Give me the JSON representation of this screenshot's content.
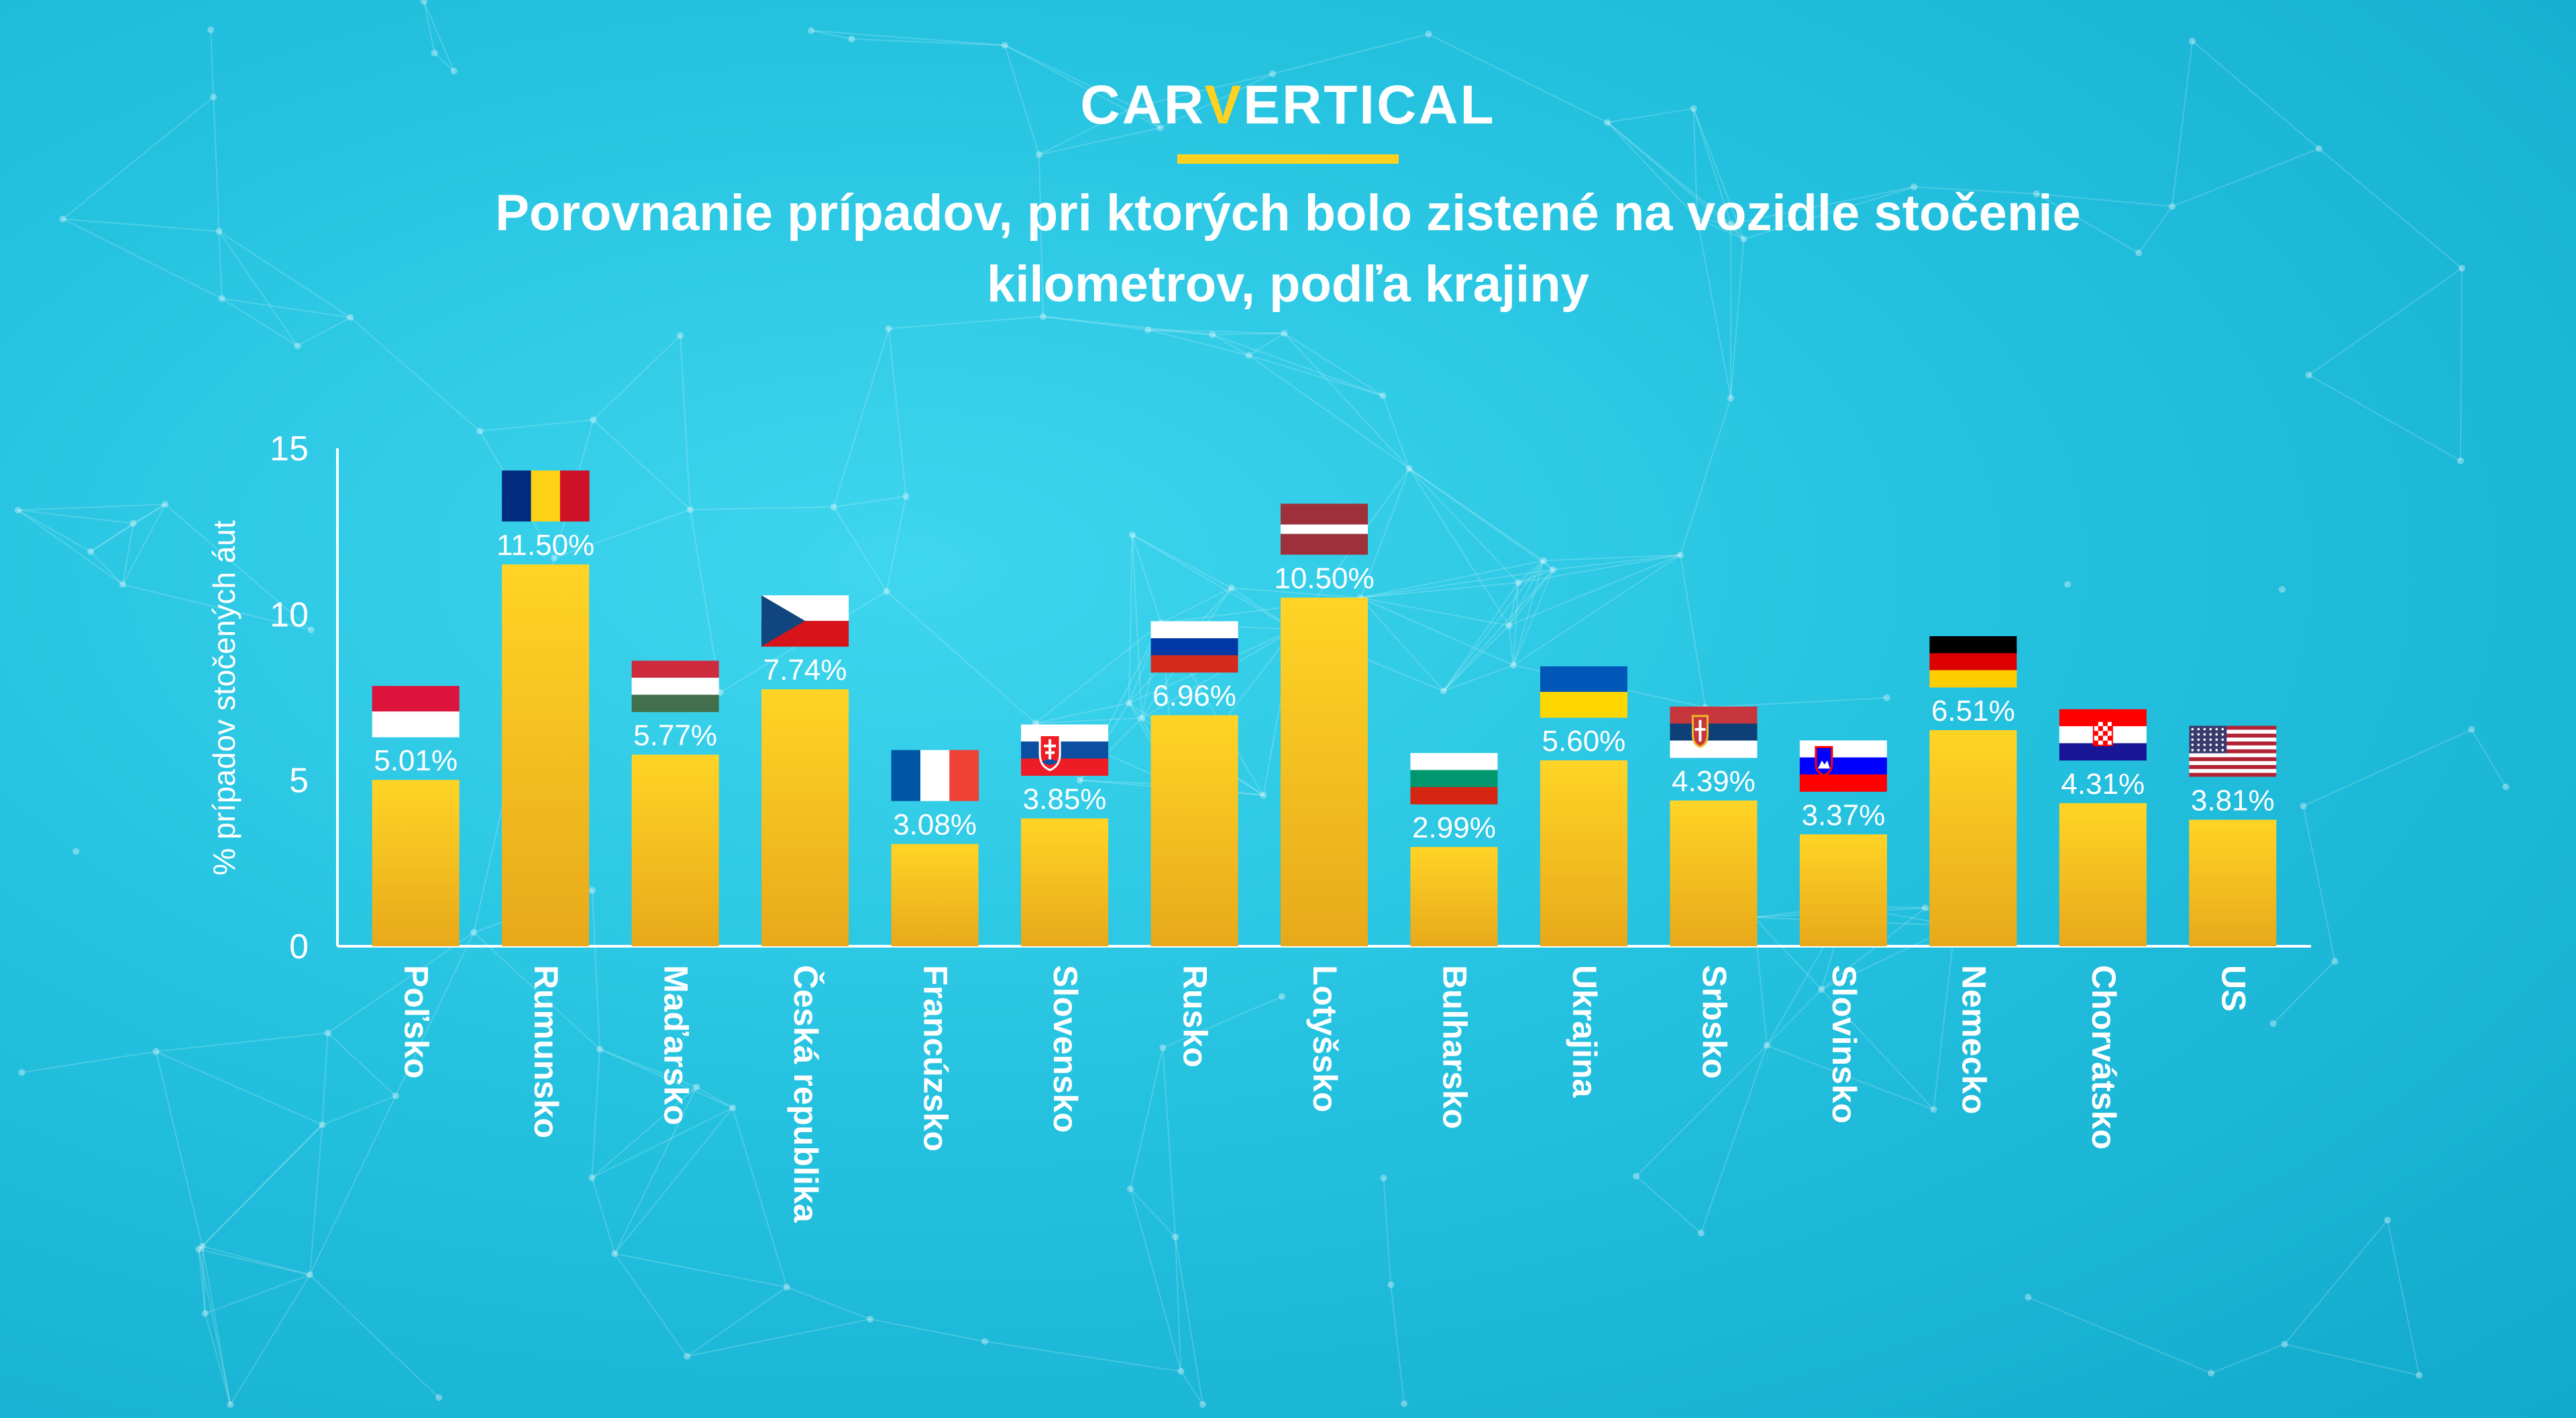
{
  "brand": {
    "logo_part1": "CAR",
    "logo_part2": "V",
    "logo_part3": "ERTICAL",
    "accent": "#ffd21f"
  },
  "chart_data": {
    "type": "bar",
    "title": "Porovnanie prípadov, pri ktorých bolo zistené na vozidle stočenie kilometrov, podľa krajiny",
    "ylabel": "% prípadov stočených áut",
    "xlabel": "",
    "ylim": [
      0,
      15
    ],
    "yticks": [
      "0",
      "5",
      "10",
      "15"
    ],
    "grid": false,
    "categories": [
      "Poľsko",
      "Rumunsko",
      "Maďarsko",
      "Česká republika",
      "Francúzsko",
      "Slovensko",
      "Rusko",
      "Lotyšsko",
      "Bulharsko",
      "Ukrajina",
      "Srbsko",
      "Slovinsko",
      "Nemecko",
      "Chorvátsko",
      "US"
    ],
    "values": [
      5.01,
      11.5,
      5.77,
      7.74,
      3.08,
      3.85,
      6.96,
      10.5,
      2.99,
      5.6,
      4.39,
      3.37,
      6.51,
      4.31,
      3.81
    ],
    "labels": [
      "5.01%",
      "11.50%",
      "5.77%",
      "7.74%",
      "3.08%",
      "3.85%",
      "6.96%",
      "10.50%",
      "2.99%",
      "5.60%",
      "4.39%",
      "3.37%",
      "6.51%",
      "4.31%",
      "3.81%"
    ],
    "flags": [
      "poland-flag",
      "romania-flag",
      "hungary-flag",
      "czech-flag",
      "france-flag",
      "slovakia-flag",
      "russia-flag",
      "latvia-flag",
      "bulgaria-flag",
      "ukraine-flag",
      "serbia-flag",
      "slovenia-flag",
      "germany-flag",
      "croatia-flag",
      "us-flag"
    ],
    "colors": {
      "bar_top": "#ffd426",
      "bar_bottom": "#e8a91a",
      "axis": "#ffffff",
      "text": "#ffffff"
    }
  }
}
